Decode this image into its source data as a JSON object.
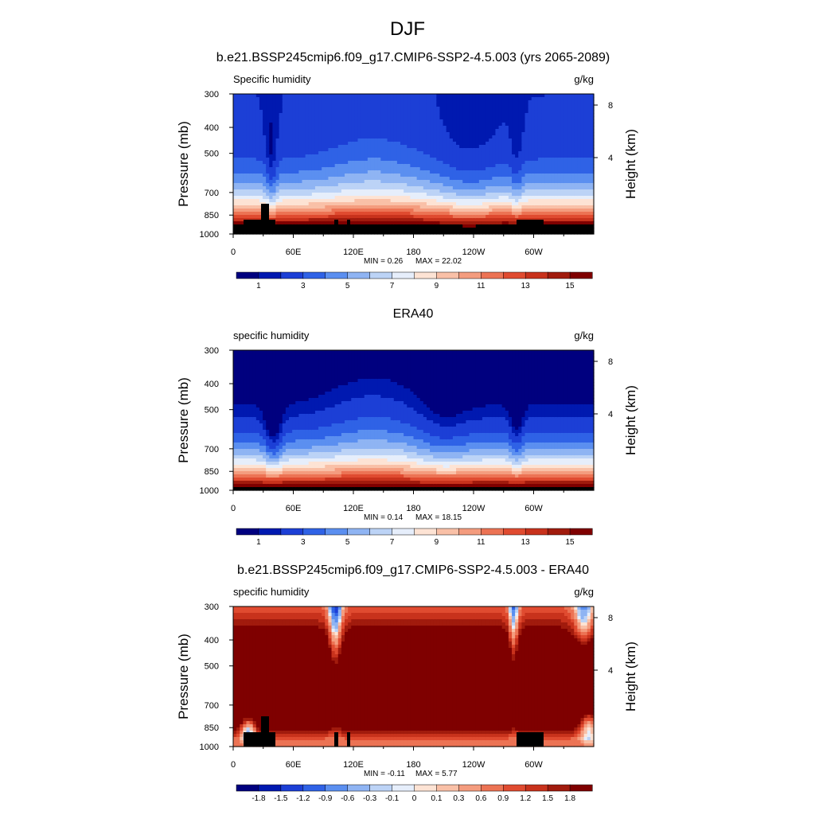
{
  "figure": {
    "title": "DJF",
    "panel_titles": [
      "b.e21.BSSP245cmip6.f09_g17.CMIP6-SSP2-4.5.003 (yrs 2065-2089)",
      "ERA40",
      "b.e21.BSSP245cmip6.f09_g17.CMIP6-SSP2-4.5.003 - ERA40"
    ]
  },
  "chart_data": [
    {
      "type": "heatmap",
      "title": "b.e21.BSSP245cmip6.f09_g17.CMIP6-SSP2-4.5.003 (yrs 2065-2089)",
      "variable": "Specific humidity",
      "units": "g/kg",
      "ylabel": "Pressure (mb)",
      "y2label": "Height (km)",
      "yticks": [
        "300",
        "400",
        "500",
        "700",
        "850",
        "1000"
      ],
      "y2ticks": [
        "8",
        "4"
      ],
      "xticks": [
        "0",
        "60E",
        "120E",
        "180",
        "120W",
        "60W"
      ],
      "min_label": "MIN =   0.26",
      "max_label": "MAX =  22.02",
      "min": 0.26,
      "max": 22.02,
      "colorbar_labels": [
        "1",
        "3",
        "5",
        "7",
        "9",
        "11",
        "13",
        "15"
      ],
      "levels": [
        0.5,
        1,
        2,
        3,
        4,
        5,
        6,
        7,
        8,
        9,
        10,
        11,
        12,
        13,
        14,
        15
      ],
      "terrain": true
    },
    {
      "type": "heatmap",
      "title": "ERA40",
      "variable": "specific humidity",
      "units": "g/kg",
      "ylabel": "Pressure (mb)",
      "y2label": "Height (km)",
      "yticks": [
        "300",
        "400",
        "500",
        "700",
        "850",
        "1000"
      ],
      "y2ticks": [
        "8",
        "4"
      ],
      "xticks": [
        "0",
        "60E",
        "120E",
        "180",
        "120W",
        "60W"
      ],
      "min_label": "MIN =   0.14",
      "max_label": "MAX =  18.15",
      "min": 0.14,
      "max": 18.15,
      "colorbar_labels": [
        "1",
        "3",
        "5",
        "7",
        "9",
        "11",
        "13",
        "15"
      ],
      "levels": [
        0.5,
        1,
        2,
        3,
        4,
        5,
        6,
        7,
        8,
        9,
        10,
        11,
        12,
        13,
        14,
        15
      ],
      "terrain": false
    },
    {
      "type": "heatmap",
      "title": "b.e21.BSSP245cmip6.f09_g17.CMIP6-SSP2-4.5.003 - ERA40",
      "variable": "specific humidity",
      "units": "g/kg",
      "ylabel": "Pressure (mb)",
      "y2label": "Height (km)",
      "yticks": [
        "300",
        "400",
        "500",
        "700",
        "850",
        "1000"
      ],
      "y2ticks": [
        "8",
        "4"
      ],
      "xticks": [
        "0",
        "60E",
        "120E",
        "180",
        "120W",
        "60W"
      ],
      "min_label": "MIN =  -0.11",
      "max_label": "MAX =   5.77",
      "min": -0.11,
      "max": 5.77,
      "colorbar_labels": [
        "-1.8",
        "-1.5",
        "-1.2",
        "-0.9",
        "-0.6",
        "-0.3",
        "-0.1",
        "0",
        "0.1",
        "0.3",
        "0.6",
        "0.9",
        "1.2",
        "1.5",
        "1.8"
      ],
      "levels": [
        -1.8,
        -1.5,
        -1.2,
        -0.9,
        -0.6,
        -0.3,
        -0.1,
        0,
        0.1,
        0.3,
        0.6,
        0.9,
        1.2,
        1.5,
        1.8
      ],
      "terrain": true
    }
  ]
}
